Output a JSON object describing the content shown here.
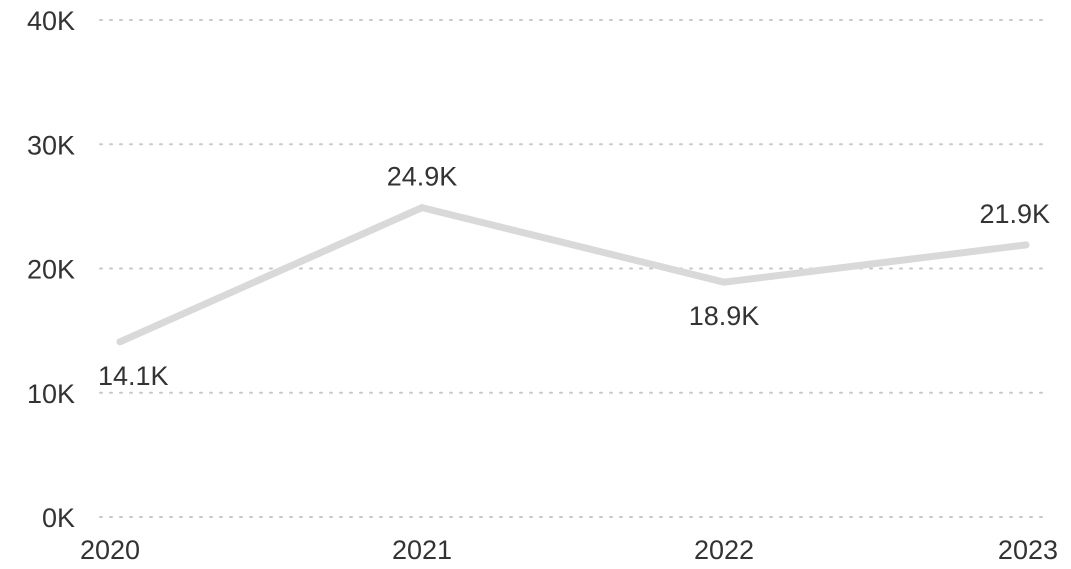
{
  "chart_data": {
    "type": "line",
    "x": [
      "2020",
      "2021",
      "2022",
      "2023"
    ],
    "series": [
      {
        "values": [
          14.1,
          24.9,
          18.9,
          21.9
        ],
        "labels": [
          "14.1K",
          "24.9K",
          "18.9K",
          "21.9K"
        ],
        "color": "#d9d9d9"
      }
    ],
    "y_ticks": [
      "0K",
      "10K",
      "20K",
      "30K",
      "40K"
    ],
    "ylim": [
      0,
      40
    ],
    "y_unit": "K",
    "grid": true,
    "grid_style": "dotted",
    "legend": "none"
  }
}
